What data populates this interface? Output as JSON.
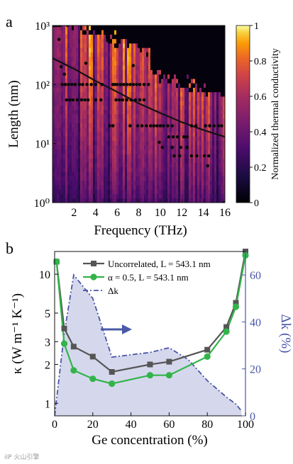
{
  "watermark": "iIP 火山引擎",
  "colors": {
    "uncorrelated": "#555555",
    "correlated": "#32b44a",
    "delta_k": "#4a55a6",
    "arrow": "#4a5aa8",
    "fill": "#c7cbe6"
  },
  "chart_data": [
    {
      "panel_label": "a",
      "type": "heatmap",
      "xlabel": "Frequency (THz)",
      "ylabel": "Length (nm)",
      "xlim": [
        0,
        16
      ],
      "ylim": [
        1,
        1000
      ],
      "yscale": "log",
      "xticks": [
        2,
        4,
        6,
        8,
        10,
        12,
        14,
        16
      ],
      "yticks": [
        {
          "value": 1,
          "label": "10⁰"
        },
        {
          "value": 10,
          "label": "10¹"
        },
        {
          "value": 100,
          "label": "10²"
        },
        {
          "value": 1000,
          "label": "10³"
        }
      ],
      "colormap": "inferno",
      "colorbar": {
        "label": "Normalized thermal conductivity",
        "range": [
          0,
          1
        ],
        "ticks": [
          "0",
          "0.2",
          "0.4",
          "0.6",
          "0.8",
          "1"
        ]
      },
      "trend_curve": {
        "x": [
          0,
          2,
          4,
          6,
          8,
          10,
          12,
          14,
          16
        ],
        "y": [
          280,
          185,
          115,
          75,
          48,
          33,
          23,
          17,
          13
        ]
      },
      "points": [
        [
          0.1,
          1000
        ],
        [
          0.2,
          1000
        ],
        [
          0.3,
          1000
        ],
        [
          0.4,
          1000
        ],
        [
          0.5,
          1000
        ],
        [
          0.7,
          1000
        ],
        [
          1.4,
          1000
        ],
        [
          0.6,
          580
        ],
        [
          0.8,
          200
        ],
        [
          1.1,
          150
        ],
        [
          5.1,
          560
        ],
        [
          3.1,
          230
        ],
        [
          7.5,
          210
        ],
        [
          0.9,
          100
        ],
        [
          1.2,
          100
        ],
        [
          1.5,
          100
        ],
        [
          1.8,
          100
        ],
        [
          2.1,
          100
        ],
        [
          2.5,
          100
        ],
        [
          2.8,
          100
        ],
        [
          3.2,
          100
        ],
        [
          3.6,
          100
        ],
        [
          4.0,
          100
        ],
        [
          4.6,
          100
        ],
        [
          5.6,
          100
        ],
        [
          5.8,
          100
        ],
        [
          6.0,
          100
        ],
        [
          6.3,
          100
        ],
        [
          6.6,
          100
        ],
        [
          6.9,
          100
        ],
        [
          7.2,
          100
        ],
        [
          7.5,
          100
        ],
        [
          7.8,
          100
        ],
        [
          8.1,
          100
        ],
        [
          8.5,
          100
        ],
        [
          8.9,
          100
        ],
        [
          1.3,
          55
        ],
        [
          1.6,
          55
        ],
        [
          1.9,
          55
        ],
        [
          2.3,
          55
        ],
        [
          2.7,
          55
        ],
        [
          3.0,
          55
        ],
        [
          3.3,
          55
        ],
        [
          4.0,
          55
        ],
        [
          4.5,
          55
        ],
        [
          5.9,
          55
        ],
        [
          6.2,
          55
        ],
        [
          6.5,
          55
        ],
        [
          6.9,
          55
        ],
        [
          7.3,
          55
        ],
        [
          7.7,
          55
        ],
        [
          8.1,
          55
        ],
        [
          8.5,
          55
        ],
        [
          5.3,
          20
        ],
        [
          5.6,
          20
        ],
        [
          7.2,
          20
        ],
        [
          7.9,
          20
        ],
        [
          8.3,
          20
        ],
        [
          8.7,
          20
        ],
        [
          9.1,
          20
        ],
        [
          9.4,
          20
        ],
        [
          9.7,
          20
        ],
        [
          10.0,
          20
        ],
        [
          10.3,
          20
        ],
        [
          10.7,
          20
        ],
        [
          11.1,
          20
        ],
        [
          12.9,
          20
        ],
        [
          13.3,
          20
        ],
        [
          14.2,
          20
        ],
        [
          14.6,
          20
        ],
        [
          15.0,
          20
        ],
        [
          15.4,
          20
        ],
        [
          15.7,
          20
        ],
        [
          10.8,
          13
        ],
        [
          11.2,
          13
        ],
        [
          11.6,
          13
        ],
        [
          9.9,
          10.5
        ],
        [
          10.2,
          8.6
        ],
        [
          11.1,
          8.6
        ],
        [
          11.9,
          8.6
        ],
        [
          12.2,
          13
        ],
        [
          12.5,
          13
        ],
        [
          11.3,
          6.2
        ],
        [
          11.8,
          6.2
        ],
        [
          12.9,
          6.2
        ],
        [
          13.4,
          6.2
        ],
        [
          12.5,
          8.6
        ],
        [
          14.1,
          6.2
        ],
        [
          14.5,
          6.2
        ],
        [
          14.4,
          4.2
        ],
        [
          15.9,
          1
        ]
      ]
    },
    {
      "panel_label": "b",
      "type": "line",
      "xlabel": "Ge concentration (%)",
      "ylabel": "κ (W m⁻¹ K⁻¹)",
      "y2label": "Δk (%)",
      "xlim": [
        0,
        100
      ],
      "ylim": [
        0.8,
        15
      ],
      "yscale": "log",
      "y2lim": [
        0,
        70
      ],
      "xticks": [
        0,
        20,
        40,
        60,
        80,
        100
      ],
      "yticks": [
        1,
        2,
        3,
        5,
        10
      ],
      "y2ticks": [
        0,
        20,
        40,
        60
      ],
      "legend": "top-center",
      "series": [
        {
          "name": "Uncorrelated, L = 543.1 nm",
          "marker": "square",
          "x": [
            1,
            5,
            10,
            20,
            30,
            50,
            60,
            80,
            90,
            95,
            100
          ],
          "y": [
            12.5,
            3.8,
            2.75,
            2.3,
            1.75,
            2.0,
            2.1,
            2.6,
            3.9,
            6.0,
            15.0
          ]
        },
        {
          "name": "α = 0.5, L = 543.1 nm",
          "marker": "circle",
          "x": [
            1,
            5,
            10,
            20,
            30,
            50,
            60,
            80,
            90,
            95,
            100
          ],
          "y": [
            12.5,
            2.9,
            1.8,
            1.55,
            1.42,
            1.65,
            1.65,
            2.3,
            3.6,
            5.6,
            14.0
          ]
        },
        {
          "name": "Δk",
          "axis": "right",
          "style": "dash-dot",
          "x": [
            0,
            5,
            10,
            20,
            30,
            40,
            50,
            60,
            70,
            80,
            90,
            95,
            98
          ],
          "y": [
            0,
            35,
            60,
            50,
            25,
            26,
            27,
            29,
            24,
            15,
            8,
            5,
            2
          ]
        }
      ]
    }
  ]
}
